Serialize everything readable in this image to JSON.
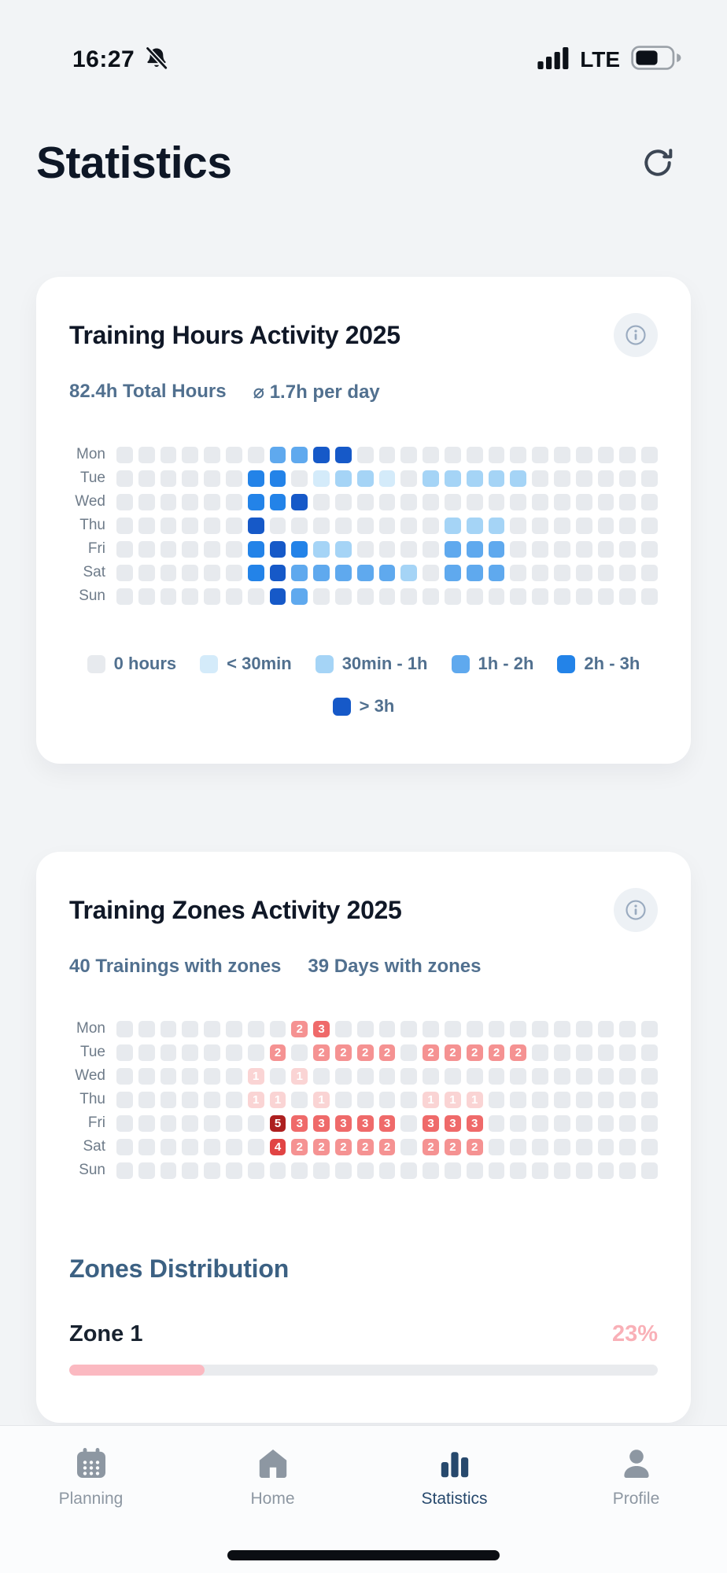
{
  "status_bar": {
    "time": "16:27",
    "network": "LTE"
  },
  "header": {
    "title": "Statistics"
  },
  "hours_card": {
    "title": "Training Hours Activity 2025",
    "stats": {
      "total": "82.4h Total Hours",
      "average": "⌀ 1.7h per day"
    },
    "heatmap": {
      "type": "heatmap",
      "days": [
        "Mon",
        "Tue",
        "Wed",
        "Thu",
        "Fri",
        "Sat",
        "Sun"
      ],
      "columns": 25,
      "palette": [
        "#e7eaee",
        "#d4ebfa",
        "#a5d4f6",
        "#5fa9ee",
        "#2383e8",
        "#1659c8"
      ],
      "grid": [
        [
          0,
          0,
          0,
          0,
          0,
          0,
          0,
          3,
          3,
          5,
          5,
          0,
          0,
          0,
          0,
          0,
          0,
          0,
          0,
          0,
          0,
          0,
          0,
          0,
          0
        ],
        [
          0,
          0,
          0,
          0,
          0,
          0,
          4,
          4,
          0,
          1,
          2,
          2,
          1,
          0,
          2,
          2,
          2,
          2,
          2,
          0,
          0,
          0,
          0,
          0,
          0
        ],
        [
          0,
          0,
          0,
          0,
          0,
          0,
          4,
          4,
          5,
          0,
          0,
          0,
          0,
          0,
          0,
          0,
          0,
          0,
          0,
          0,
          0,
          0,
          0,
          0,
          0
        ],
        [
          0,
          0,
          0,
          0,
          0,
          0,
          5,
          0,
          0,
          0,
          0,
          0,
          0,
          0,
          0,
          2,
          2,
          2,
          0,
          0,
          0,
          0,
          0,
          0,
          0
        ],
        [
          0,
          0,
          0,
          0,
          0,
          0,
          4,
          5,
          4,
          2,
          2,
          0,
          0,
          0,
          0,
          3,
          3,
          3,
          0,
          0,
          0,
          0,
          0,
          0,
          0
        ],
        [
          0,
          0,
          0,
          0,
          0,
          0,
          4,
          5,
          3,
          3,
          3,
          3,
          3,
          2,
          0,
          3,
          3,
          3,
          0,
          0,
          0,
          0,
          0,
          0,
          0
        ],
        [
          0,
          0,
          0,
          0,
          0,
          0,
          0,
          5,
          3,
          0,
          0,
          0,
          0,
          0,
          0,
          0,
          0,
          0,
          0,
          0,
          0,
          0,
          0,
          0,
          0
        ]
      ]
    },
    "legend": [
      {
        "label": "0 hours",
        "level": 0
      },
      {
        "label": "< 30min",
        "level": 1
      },
      {
        "label": "30min - 1h",
        "level": 2
      },
      {
        "label": "1h - 2h",
        "level": 3
      },
      {
        "label": "2h - 3h",
        "level": 4
      },
      {
        "label": "> 3h",
        "level": 5
      }
    ]
  },
  "zones_card": {
    "title": "Training Zones Activity 2025",
    "stats": {
      "trainings": "40 Trainings with zones",
      "days": "39 Days with zones"
    },
    "heatmap": {
      "type": "heatmap",
      "days": [
        "Mon",
        "Tue",
        "Wed",
        "Thu",
        "Fri",
        "Sat",
        "Sun"
      ],
      "columns": 25,
      "empty_color": "#e7eaee",
      "palette": {
        "1": "#fad4d4",
        "2": "#f59292",
        "3": "#ef6a6a",
        "4": "#e14444",
        "5": "#ad2020"
      },
      "grid": [
        [
          0,
          0,
          0,
          0,
          0,
          0,
          0,
          0,
          2,
          3,
          0,
          0,
          0,
          0,
          0,
          0,
          0,
          0,
          0,
          0,
          0,
          0,
          0,
          0,
          0
        ],
        [
          0,
          0,
          0,
          0,
          0,
          0,
          0,
          2,
          0,
          2,
          2,
          2,
          2,
          0,
          2,
          2,
          2,
          2,
          2,
          0,
          0,
          0,
          0,
          0,
          0
        ],
        [
          0,
          0,
          0,
          0,
          0,
          0,
          1,
          0,
          1,
          0,
          0,
          0,
          0,
          0,
          0,
          0,
          0,
          0,
          0,
          0,
          0,
          0,
          0,
          0,
          0
        ],
        [
          0,
          0,
          0,
          0,
          0,
          0,
          1,
          1,
          0,
          1,
          0,
          0,
          0,
          0,
          1,
          1,
          1,
          0,
          0,
          0,
          0,
          0,
          0,
          0,
          0
        ],
        [
          0,
          0,
          0,
          0,
          0,
          0,
          0,
          5,
          3,
          3,
          3,
          3,
          3,
          0,
          3,
          3,
          3,
          0,
          0,
          0,
          0,
          0,
          0,
          0,
          0
        ],
        [
          0,
          0,
          0,
          0,
          0,
          0,
          0,
          4,
          2,
          2,
          2,
          2,
          2,
          0,
          2,
          2,
          2,
          0,
          0,
          0,
          0,
          0,
          0,
          0,
          0
        ],
        [
          0,
          0,
          0,
          0,
          0,
          0,
          0,
          0,
          0,
          0,
          0,
          0,
          0,
          0,
          0,
          0,
          0,
          0,
          0,
          0,
          0,
          0,
          0,
          0,
          0
        ]
      ]
    },
    "distribution": {
      "heading": "Zones Distribution",
      "zones": [
        {
          "name": "Zone 1",
          "percent": 23,
          "percent_label": "23%",
          "bar_color": "#fbb9c1"
        }
      ]
    }
  },
  "tab_bar": {
    "items": [
      {
        "label": "Planning",
        "icon": "calendar",
        "active": false
      },
      {
        "label": "Home",
        "icon": "home",
        "active": false
      },
      {
        "label": "Statistics",
        "icon": "bar-chart",
        "active": true
      },
      {
        "label": "Profile",
        "icon": "person",
        "active": false
      }
    ]
  }
}
